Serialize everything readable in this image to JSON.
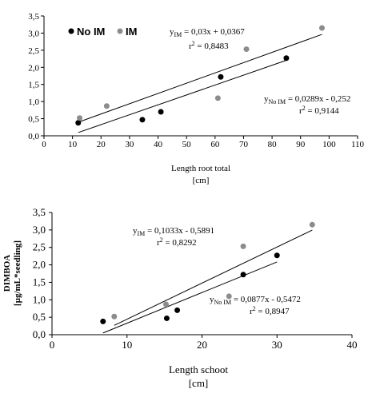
{
  "chart_data": [
    {
      "type": "scatter",
      "title": "",
      "xlabel": "Length root total",
      "xunit": "[cm]",
      "ylabel": "",
      "xlim": [
        0,
        110
      ],
      "ylim": [
        0,
        3.5
      ],
      "xticks": [
        "0",
        "10",
        "20",
        "30",
        "40",
        "50",
        "60",
        "70",
        "80",
        "90",
        "100",
        "110"
      ],
      "yticks": [
        "0,0",
        "0,5",
        "1,0",
        "1,5",
        "2,0",
        "2,5",
        "3,0",
        "3,5"
      ],
      "grid": false,
      "legend": {
        "placement": "top-left",
        "items": [
          {
            "label": "No IM",
            "color": "#000000"
          },
          {
            "label": "IM",
            "color": "#8c8c8c"
          }
        ]
      },
      "series": [
        {
          "name": "No IM",
          "color": "#000000",
          "x": [
            12,
            34.5,
            41,
            62,
            85
          ],
          "y": [
            0.38,
            0.47,
            0.7,
            1.72,
            2.27
          ],
          "trend": {
            "slope": 0.0289,
            "intercept": -0.252,
            "x_range": [
              12,
              85
            ]
          }
        },
        {
          "name": "IM",
          "color": "#8c8c8c",
          "x": [
            12.5,
            22,
            61,
            71,
            97.5
          ],
          "y": [
            0.52,
            0.87,
            1.1,
            2.53,
            3.15
          ],
          "trend": {
            "slope": 0.03,
            "intercept": 0.0367,
            "x_range": [
              12.5,
              97.5
            ]
          }
        }
      ],
      "annotations": {
        "im_eq": {
          "y": "y",
          "sub": "IM",
          "rest": " = 0,03x + 0,0367"
        },
        "im_r2": {
          "r": "r",
          "sup": "2",
          "rest": " = 0,8483"
        },
        "noim_eq": {
          "y": "y",
          "sub": "No IM",
          "rest": " = 0,0289x  - 0,252"
        },
        "noim_r2": {
          "r": "r",
          "sup": "2",
          "rest": " = 0,9144"
        }
      }
    },
    {
      "type": "scatter",
      "title": "",
      "xlabel": "Length schoot",
      "xunit": "[cm]",
      "ylabel": "DIMBOA",
      "yunit": "[µg/mL*seedling]",
      "xlim": [
        0,
        40
      ],
      "ylim": [
        0,
        3.5
      ],
      "xticks": [
        "0",
        "10",
        "20",
        "30",
        "40"
      ],
      "yticks": [
        "0,0",
        "0,5",
        "1,0",
        "1,5",
        "2,0",
        "2,5",
        "3,0",
        "3,5"
      ],
      "grid": false,
      "series": [
        {
          "name": "No IM",
          "color": "#000000",
          "x": [
            6.8,
            15.3,
            16.7,
            25.5,
            30
          ],
          "y": [
            0.38,
            0.47,
            0.7,
            1.72,
            2.27
          ],
          "trend": {
            "slope": 0.0877,
            "intercept": -0.5472,
            "x_range": [
              6.8,
              30
            ]
          }
        },
        {
          "name": "IM",
          "color": "#8c8c8c",
          "x": [
            8.3,
            15.2,
            23.6,
            25.5,
            34.7
          ],
          "y": [
            0.52,
            0.87,
            1.1,
            2.53,
            3.15
          ],
          "trend": {
            "slope": 0.1033,
            "intercept": -0.5891,
            "x_range": [
              8.3,
              34.7
            ]
          }
        }
      ],
      "annotations": {
        "im_eq": {
          "y": "y",
          "sub": "IM",
          "rest": " = 0,1033x  - 0,5891"
        },
        "im_r2": {
          "r": "r",
          "sup": "2",
          "rest": " = 0,8292"
        },
        "noim_eq": {
          "y": "y",
          "sub": "No IM",
          "rest": " = 0,0877x  - 0,5472"
        },
        "noim_r2": {
          "r": "r",
          "sup": "2",
          "rest": " = 0,8947"
        }
      }
    }
  ]
}
